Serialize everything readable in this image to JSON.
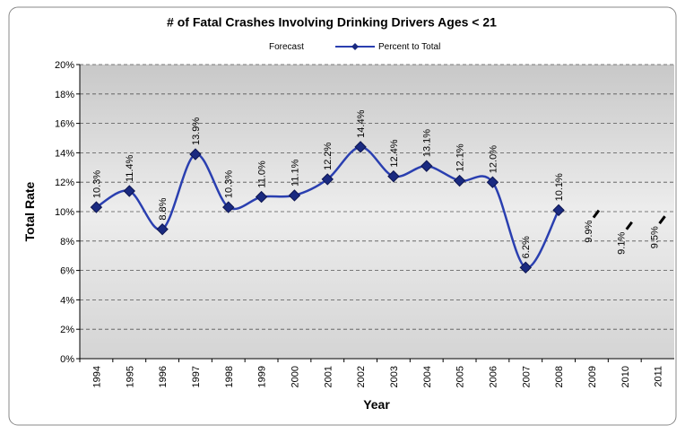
{
  "chart_data": {
    "type": "line",
    "title": "# of Fatal Crashes Involving Drinking Drivers Ages < 21",
    "x_label": "Year",
    "y_label": "Total Rate",
    "categories": [
      "1994",
      "1995",
      "1996",
      "1997",
      "1998",
      "1999",
      "2000",
      "2001",
      "2002",
      "2003",
      "2004",
      "2005",
      "2006",
      "2007",
      "2008",
      "2009",
      "2010",
      "2011"
    ],
    "series": [
      {
        "name": "Forecast",
        "color": "#000000",
        "values": [
          null,
          null,
          null,
          null,
          null,
          null,
          null,
          null,
          null,
          null,
          null,
          null,
          null,
          null,
          null,
          9.9,
          9.1,
          9.5
        ],
        "value_labels": [
          null,
          null,
          null,
          null,
          null,
          null,
          null,
          null,
          null,
          null,
          null,
          null,
          null,
          null,
          null,
          "9.9%",
          "9.1%",
          "9.5%"
        ]
      },
      {
        "name": "Percent to Total",
        "color": "#2a3fb0",
        "values": [
          10.3,
          11.4,
          8.8,
          13.9,
          10.3,
          11.0,
          11.1,
          12.2,
          14.4,
          12.4,
          13.1,
          12.1,
          12.0,
          6.2,
          10.1,
          null,
          null,
          null
        ],
        "value_labels": [
          "10.3%",
          "11.4%",
          "8.8%",
          "13.9%",
          "10.3%",
          "11.0%",
          "11.1%",
          "12.2%",
          "14.4%",
          "12.4%",
          "13.1%",
          "12.1%",
          "12.0%",
          "6.2%",
          "10.1%",
          null,
          null,
          null
        ]
      }
    ],
    "ylim": [
      0,
      20
    ],
    "yticks": [
      {
        "value": 0,
        "label": "0%"
      },
      {
        "value": 2,
        "label": "2%"
      },
      {
        "value": 4,
        "label": "4%"
      },
      {
        "value": 6,
        "label": "6%"
      },
      {
        "value": 8,
        "label": "8%"
      },
      {
        "value": 10,
        "label": "10%"
      },
      {
        "value": 12,
        "label": "12%"
      },
      {
        "value": 14,
        "label": "14%"
      },
      {
        "value": 16,
        "label": "16%"
      },
      {
        "value": 18,
        "label": "18%"
      },
      {
        "value": 20,
        "label": "20%"
      }
    ],
    "grid": true,
    "legend": "top"
  }
}
